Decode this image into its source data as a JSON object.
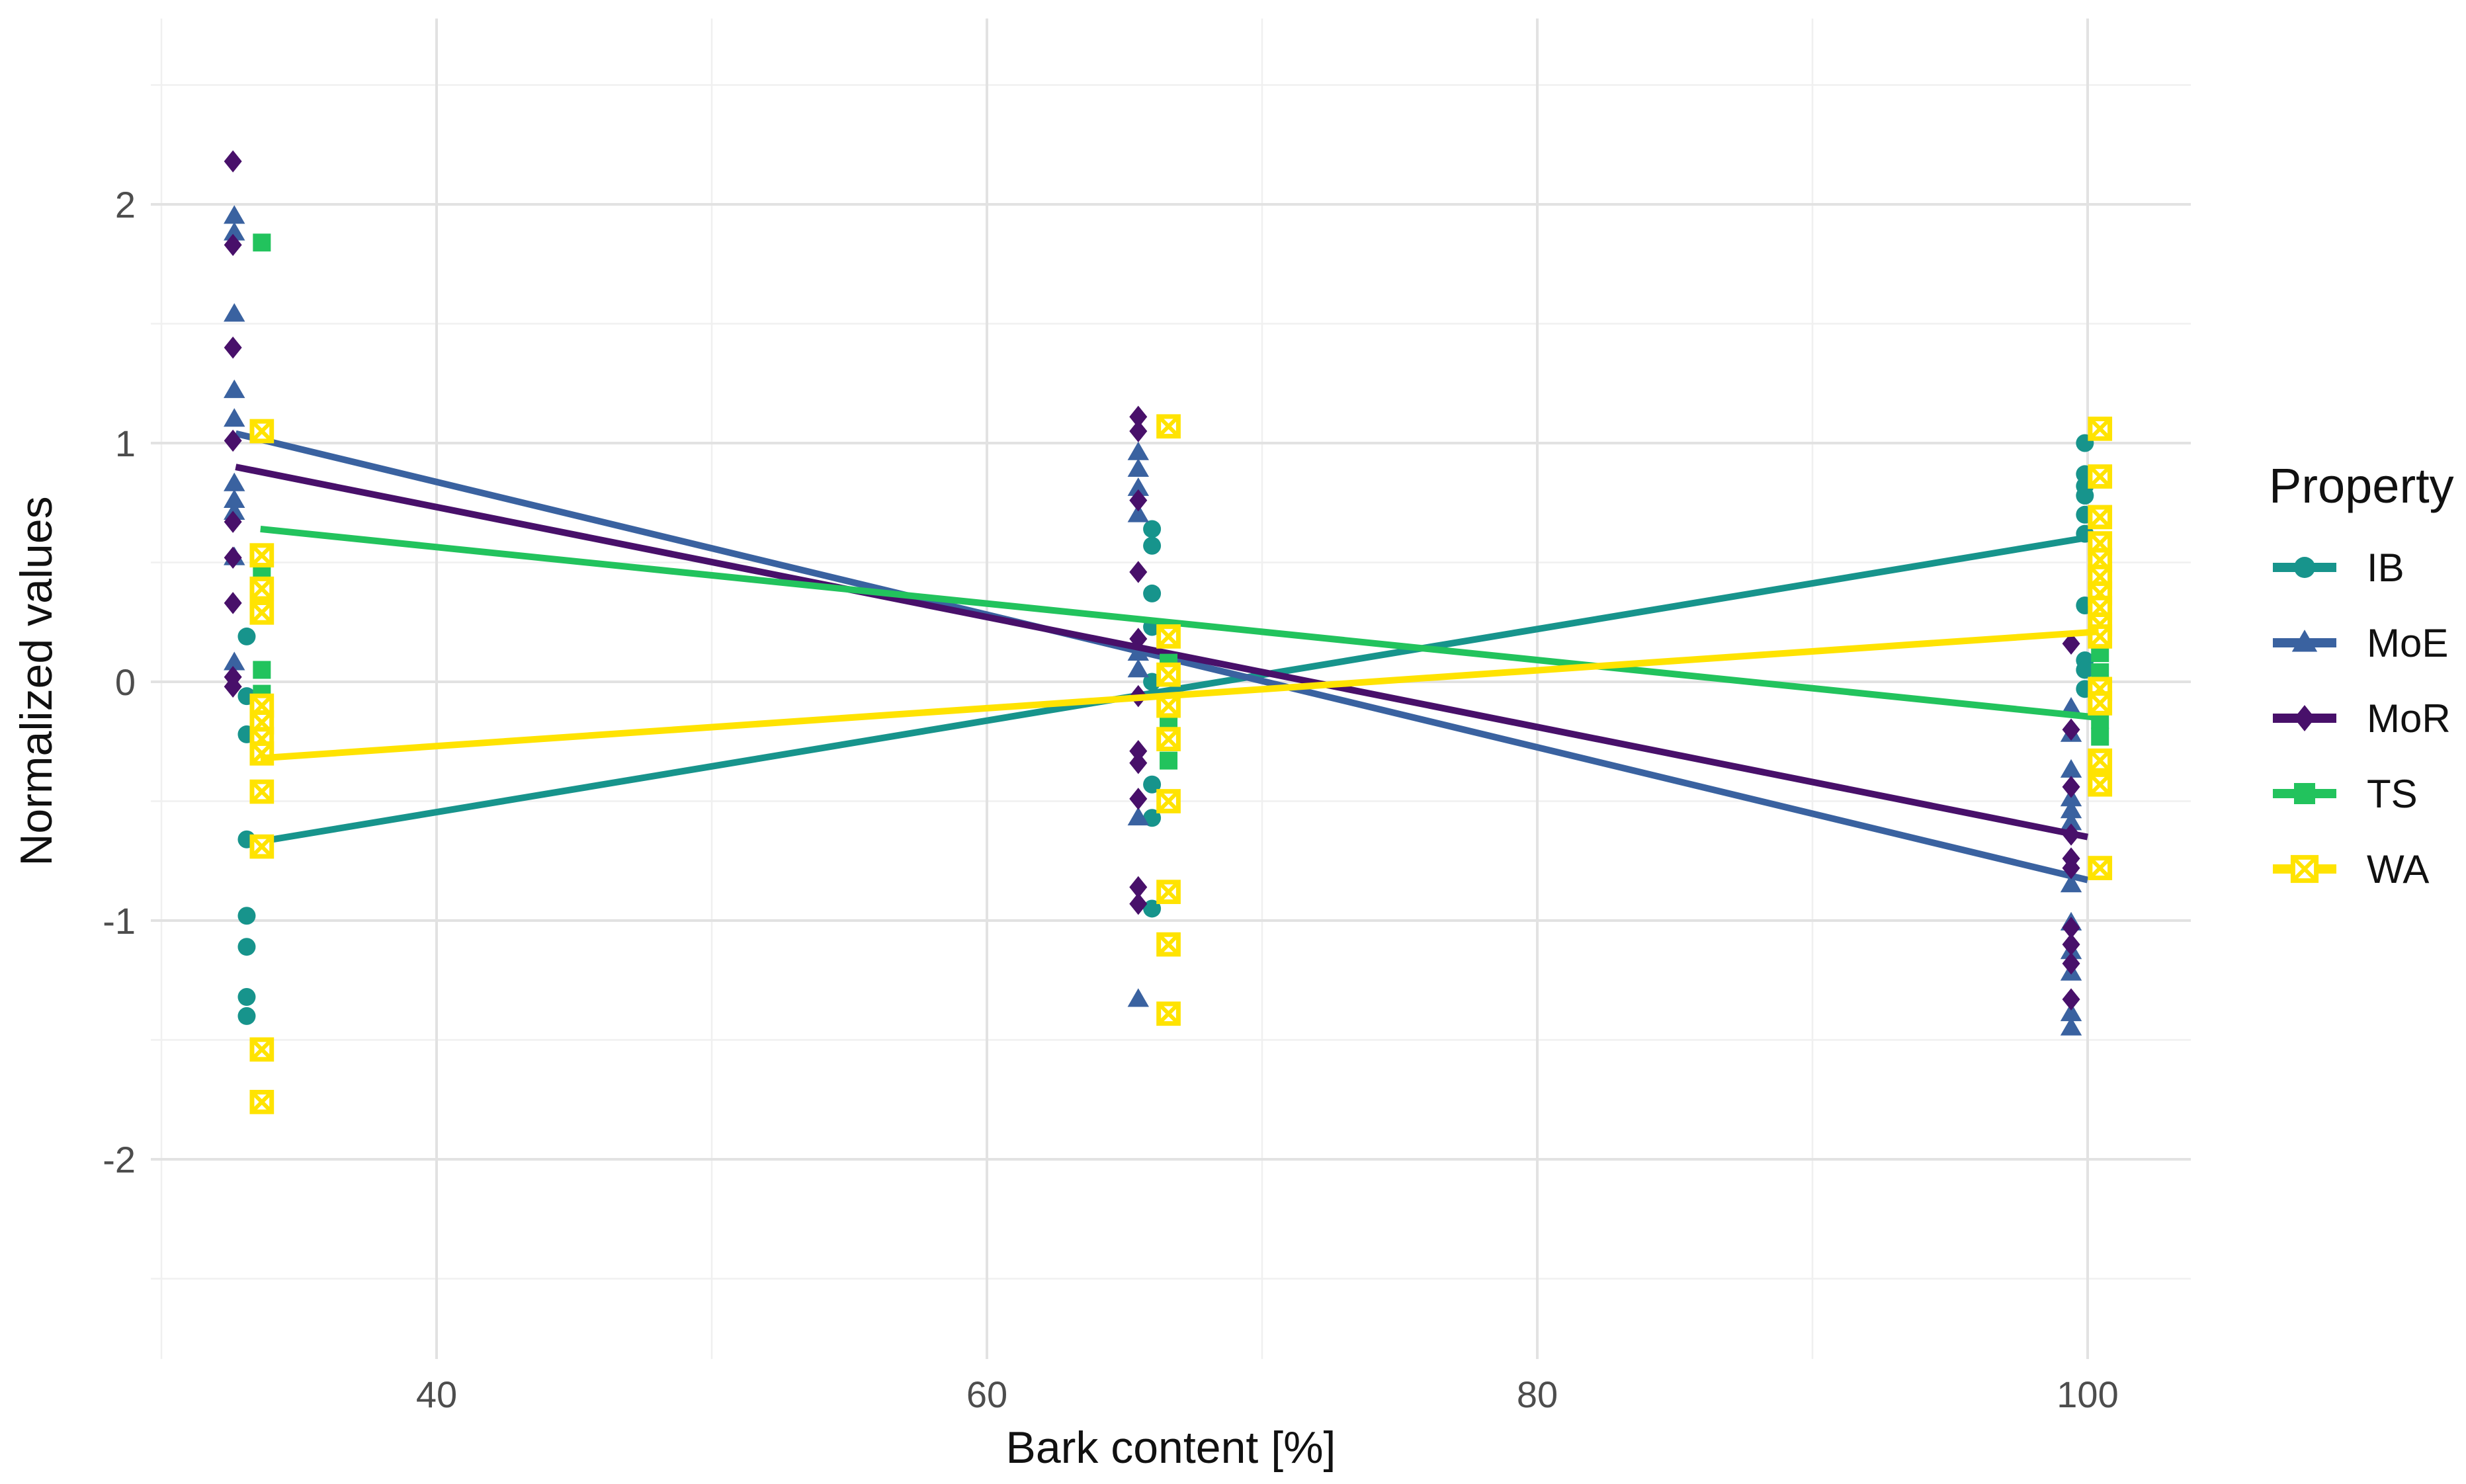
{
  "chart_data": {
    "type": "scatter",
    "title": "",
    "xlabel": "Bark content [%]",
    "ylabel": "Normalized values",
    "legend_title": "Property",
    "legend_position": "right",
    "grid": true,
    "xlim": [
      29.6,
      103.8
    ],
    "ylim": [
      -2.84,
      2.78
    ],
    "x_ticks": [
      40,
      60,
      80,
      100
    ],
    "y_ticks": [
      2,
      1,
      0,
      -1,
      -2
    ],
    "x_minor_ticks": [
      30,
      50,
      70,
      90
    ],
    "y_minor_ticks": [
      2.5,
      1.5,
      0.5,
      -0.5,
      -1.5,
      -2.5
    ],
    "series": [
      {
        "name": "IB",
        "marker": "circle",
        "color": "#17948c",
        "points": [
          [
            33.1,
            0.19
          ],
          [
            33.1,
            -0.06
          ],
          [
            33.1,
            -0.22
          ],
          [
            33.1,
            -0.66
          ],
          [
            33.1,
            -0.98
          ],
          [
            33.1,
            -1.11
          ],
          [
            33.1,
            -1.32
          ],
          [
            33.1,
            -1.4
          ],
          [
            66,
            0.64
          ],
          [
            66,
            0.57
          ],
          [
            66,
            0.37
          ],
          [
            66,
            0.23
          ],
          [
            66,
            0.0
          ],
          [
            66,
            -0.43
          ],
          [
            66,
            -0.57
          ],
          [
            66,
            -0.95
          ],
          [
            99.9,
            1.0
          ],
          [
            99.9,
            0.87
          ],
          [
            99.9,
            0.82
          ],
          [
            99.9,
            0.78
          ],
          [
            99.9,
            0.7
          ],
          [
            99.9,
            0.62
          ],
          [
            99.9,
            0.32
          ],
          [
            99.9,
            0.09
          ],
          [
            99.9,
            0.05
          ],
          [
            99.9,
            -0.03
          ]
        ],
        "trend": [
          33.0,
          -0.68,
          100.3,
          0.61
        ]
      },
      {
        "name": "MoE",
        "marker": "triangle",
        "color": "#3a62a0",
        "points": [
          [
            32.65,
            1.95
          ],
          [
            32.65,
            1.88
          ],
          [
            32.65,
            1.54
          ],
          [
            32.65,
            1.22
          ],
          [
            32.65,
            1.1
          ],
          [
            32.65,
            0.83
          ],
          [
            32.65,
            0.76
          ],
          [
            32.65,
            0.71
          ],
          [
            32.65,
            0.52
          ],
          [
            32.65,
            0.08
          ],
          [
            65.5,
            0.96
          ],
          [
            65.5,
            0.89
          ],
          [
            65.5,
            0.81
          ],
          [
            65.5,
            0.7
          ],
          [
            65.5,
            0.12
          ],
          [
            65.5,
            0.05
          ],
          [
            65.5,
            -0.57
          ],
          [
            65.5,
            -1.33
          ],
          [
            99.4,
            -0.11
          ],
          [
            99.4,
            -0.22
          ],
          [
            99.4,
            -0.37
          ],
          [
            99.4,
            -0.49
          ],
          [
            99.4,
            -0.54
          ],
          [
            99.4,
            -0.59
          ],
          [
            99.4,
            -0.85
          ],
          [
            99.4,
            -1.01
          ],
          [
            99.4,
            -1.13
          ],
          [
            99.4,
            -1.22
          ],
          [
            99.4,
            -1.39
          ],
          [
            99.4,
            -1.45
          ]
        ],
        "trend": [
          32.7,
          1.04,
          100.0,
          -0.83
        ]
      },
      {
        "name": "MoR",
        "marker": "diamond",
        "color": "#48106a",
        "points": [
          [
            32.6,
            2.18
          ],
          [
            32.6,
            1.83
          ],
          [
            32.6,
            1.4
          ],
          [
            32.6,
            1.01
          ],
          [
            32.6,
            0.67
          ],
          [
            32.6,
            0.52
          ],
          [
            32.6,
            0.33
          ],
          [
            32.6,
            0.02
          ],
          [
            32.6,
            -0.02
          ],
          [
            65.5,
            1.11
          ],
          [
            65.5,
            1.05
          ],
          [
            65.5,
            0.76
          ],
          [
            65.5,
            0.46
          ],
          [
            65.5,
            0.18
          ],
          [
            65.5,
            -0.06
          ],
          [
            65.5,
            -0.29
          ],
          [
            65.5,
            -0.34
          ],
          [
            65.5,
            -0.49
          ],
          [
            65.5,
            -0.86
          ],
          [
            65.5,
            -0.93
          ],
          [
            99.4,
            0.16
          ],
          [
            99.4,
            -0.2
          ],
          [
            99.4,
            -0.44
          ],
          [
            99.4,
            -0.64
          ],
          [
            99.4,
            -0.74
          ],
          [
            99.4,
            -0.78
          ],
          [
            99.4,
            -1.03
          ],
          [
            99.4,
            -1.1
          ],
          [
            99.4,
            -1.18
          ],
          [
            99.4,
            -1.33
          ]
        ],
        "trend": [
          32.7,
          0.9,
          100.0,
          -0.65
        ]
      },
      {
        "name": "TS",
        "marker": "square",
        "color": "#22c35d",
        "points": [
          [
            33.65,
            1.84
          ],
          [
            33.65,
            0.45
          ],
          [
            33.65,
            0.29
          ],
          [
            33.65,
            0.05
          ],
          [
            33.65,
            -0.05
          ],
          [
            66.6,
            0.08
          ],
          [
            66.6,
            -0.12
          ],
          [
            66.6,
            -0.18
          ],
          [
            66.6,
            -0.33
          ],
          [
            100.45,
            0.12
          ],
          [
            100.45,
            0.04
          ],
          [
            100.45,
            -0.16
          ],
          [
            100.45,
            -0.23
          ],
          [
            100.45,
            -0.33
          ]
        ],
        "trend": [
          33.6,
          0.64,
          100.4,
          -0.15
        ]
      },
      {
        "name": "WA",
        "marker": "square-x",
        "color": "#ffe301",
        "points": [
          [
            33.65,
            1.05
          ],
          [
            33.65,
            0.53
          ],
          [
            33.65,
            0.39
          ],
          [
            33.65,
            0.29
          ],
          [
            33.65,
            -0.1
          ],
          [
            33.65,
            -0.17
          ],
          [
            33.65,
            -0.24
          ],
          [
            33.65,
            -0.3
          ],
          [
            33.65,
            -0.46
          ],
          [
            33.65,
            -0.69
          ],
          [
            33.65,
            -1.54
          ],
          [
            33.65,
            -1.76
          ],
          [
            66.6,
            1.07
          ],
          [
            66.6,
            0.19
          ],
          [
            66.6,
            0.03
          ],
          [
            66.6,
            -0.1
          ],
          [
            66.6,
            -0.24
          ],
          [
            66.6,
            -0.5
          ],
          [
            66.6,
            -0.88
          ],
          [
            66.6,
            -1.1
          ],
          [
            66.6,
            -1.39
          ],
          [
            100.45,
            1.06
          ],
          [
            100.45,
            0.86
          ],
          [
            100.45,
            0.69
          ],
          [
            100.45,
            0.58
          ],
          [
            100.45,
            0.51
          ],
          [
            100.45,
            0.44
          ],
          [
            100.45,
            0.37
          ],
          [
            100.45,
            0.31
          ],
          [
            100.45,
            0.24
          ],
          [
            100.45,
            0.19
          ],
          [
            100.45,
            -0.03
          ],
          [
            100.45,
            -0.09
          ],
          [
            100.45,
            -0.33
          ],
          [
            100.45,
            -0.43
          ],
          [
            100.45,
            -0.78
          ]
        ],
        "trend": [
          33.6,
          -0.32,
          100.4,
          0.21
        ]
      }
    ]
  }
}
